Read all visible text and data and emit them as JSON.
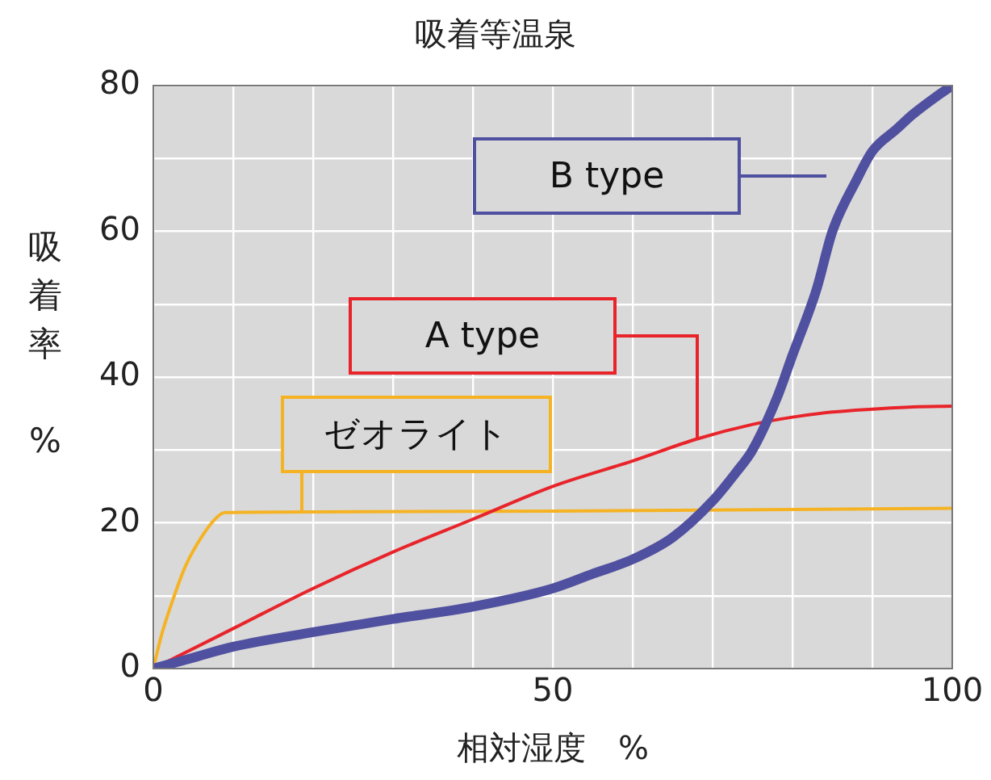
{
  "chart_data": {
    "type": "line",
    "title": "吸着等温泉",
    "xlabel": "相対湿度　%",
    "ylabel": "吸着率 %",
    "xlim": [
      0,
      100
    ],
    "xticks": [
      0,
      {
        "value": 10,
        "label": null
      },
      {
        "value": 20,
        "label": null
      },
      {
        "value": 30,
        "label": null
      },
      {
        "value": 40,
        "label": null
      },
      50,
      {
        "value": 60,
        "label": null
      },
      {
        "value": 70,
        "label": null
      },
      {
        "value": 80,
        "label": null
      },
      {
        "value": 90,
        "label": null
      },
      100
    ],
    "ylim": [
      0,
      80
    ],
    "yticks": [
      0,
      {
        "value": 10,
        "label": null
      },
      20,
      {
        "value": 30,
        "label": null
      },
      40,
      {
        "value": 50,
        "label": null
      },
      60,
      {
        "value": 70,
        "label": null
      },
      80
    ],
    "grid": true,
    "legend": "top",
    "marker": "none",
    "line_style": "solid",
    "series": [
      {
        "name": "B type",
        "color": "#5050a0",
        "x": [
          0,
          5,
          10,
          20,
          30,
          40,
          50,
          55,
          60,
          65,
          70,
          73,
          75,
          78,
          80,
          83,
          85,
          88,
          90,
          93,
          95,
          98,
          100
        ],
        "values": [
          0,
          1.5,
          3,
          5,
          6.8,
          8.5,
          11,
          13,
          15,
          18,
          23,
          27,
          30,
          37,
          43,
          52,
          60,
          67,
          71,
          74,
          76,
          78.5,
          80
        ]
      },
      {
        "name": "A type",
        "color": "#e8242a",
        "x": [
          0,
          10,
          20,
          30,
          40,
          50,
          60,
          68,
          75,
          80,
          85,
          90,
          95,
          100
        ],
        "values": [
          0,
          5.5,
          11,
          16,
          20.5,
          25,
          28.5,
          31.5,
          33.5,
          34.5,
          35.2,
          35.6,
          35.9,
          36
        ]
      },
      {
        "name": "ゼオライト",
        "color": "#f5b324",
        "x": [
          0,
          1,
          2,
          4,
          6,
          8,
          9,
          20,
          50,
          100
        ],
        "values": [
          0,
          4.5,
          8,
          14,
          18,
          20.8,
          21.4,
          21.5,
          21.6,
          22
        ]
      }
    ]
  }
}
